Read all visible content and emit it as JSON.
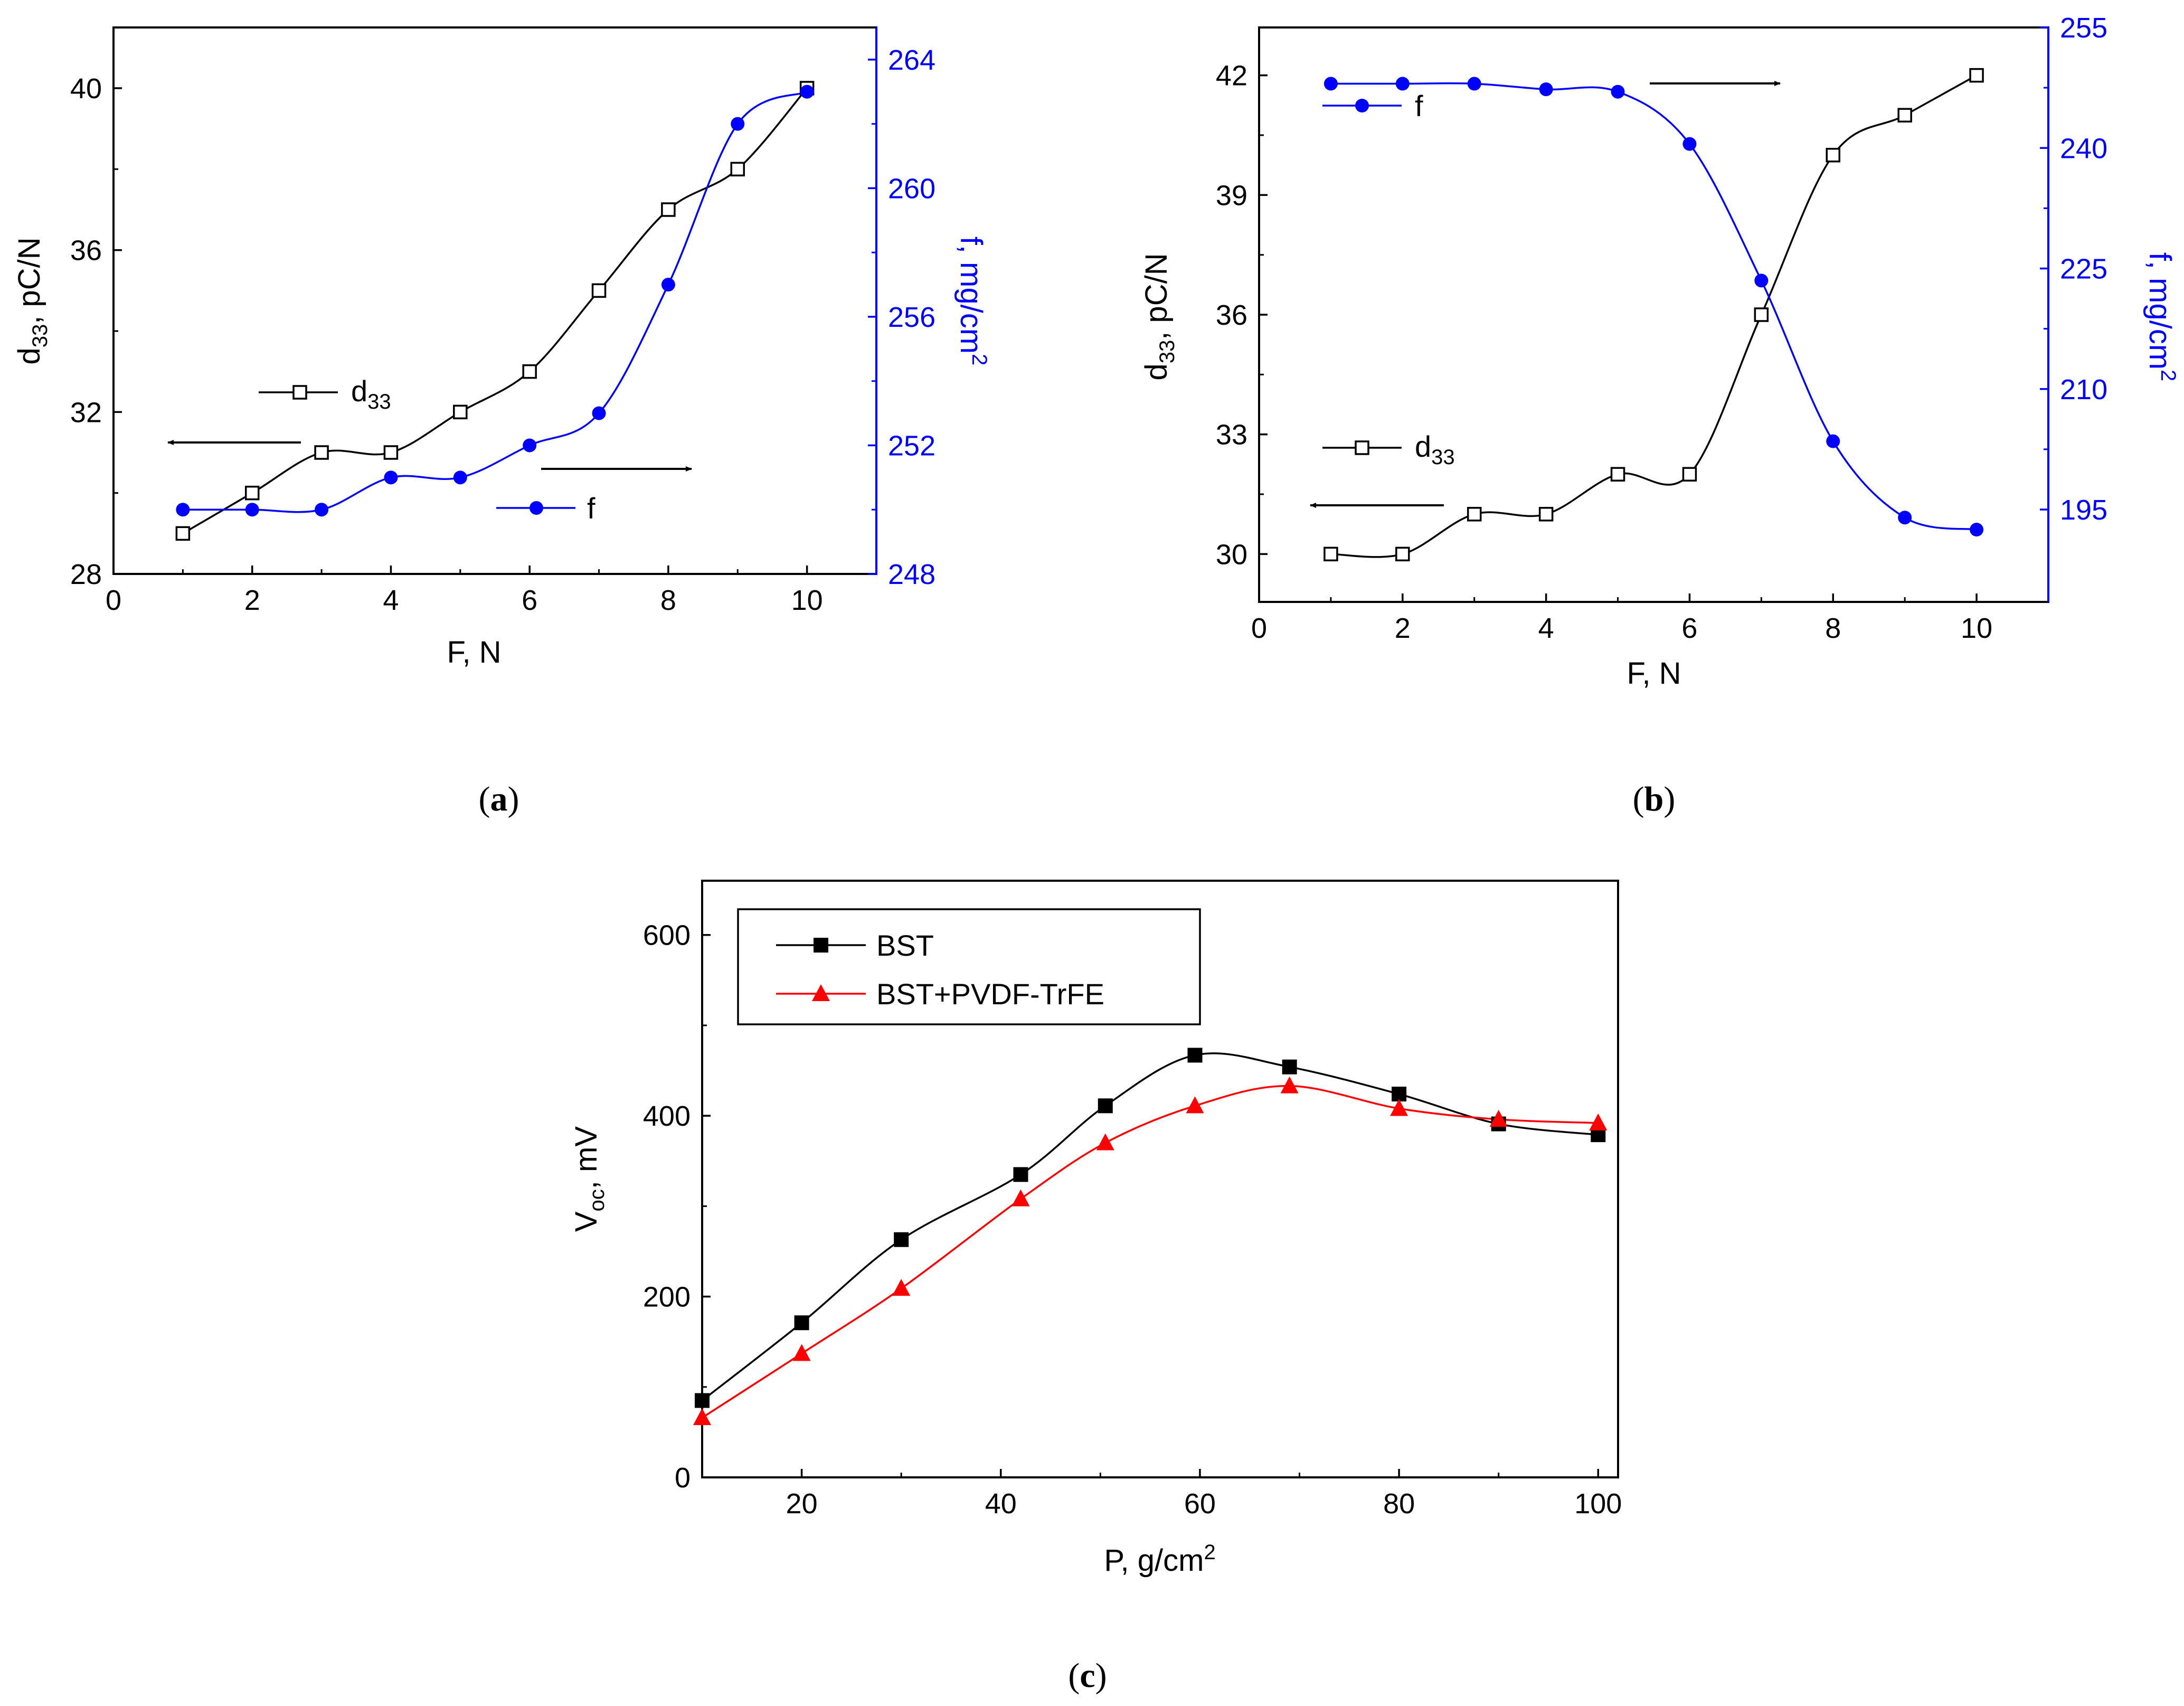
{
  "chart_data": [
    {
      "id": "a",
      "type": "line",
      "panel_label": "a",
      "xlabel": "F, N",
      "ylabel_left": "d33, pC/N",
      "ylabel_left_main": "d",
      "ylabel_left_sub": "33",
      "ylabel_left_rest": ", pC/N",
      "ylabel_right": "f, mg/cm2",
      "ylabel_right_main": "f, mg/cm",
      "ylabel_right_sup": "2",
      "xlim": [
        0,
        11
      ],
      "xticks": [
        0,
        2,
        4,
        6,
        8,
        10
      ],
      "ylim_left": [
        28,
        41.5
      ],
      "yticks_left": [
        28,
        32,
        36,
        40
      ],
      "ylim_right": [
        248,
        265
      ],
      "yticks_right": [
        248,
        252,
        256,
        260,
        264
      ],
      "right_axis_color": "#0000ff",
      "series": [
        {
          "name": "d33",
          "legend_main": "d",
          "legend_sub": "33",
          "axis": "left",
          "color": "#000000",
          "marker": "open-square",
          "x": [
            1,
            2,
            3,
            4,
            5,
            6,
            7,
            8,
            9,
            10
          ],
          "values": [
            29,
            30,
            31,
            31,
            32,
            33,
            35,
            37,
            38,
            40
          ]
        },
        {
          "name": "f",
          "legend_main": "f",
          "axis": "right",
          "color": "#0000ff",
          "marker": "filled-circle",
          "x": [
            1,
            2,
            3,
            4,
            5,
            6,
            7,
            8,
            9,
            10
          ],
          "values": [
            250,
            250,
            250,
            251,
            251,
            252,
            253,
            257,
            262,
            263
          ]
        }
      ]
    },
    {
      "id": "b",
      "type": "line",
      "panel_label": "b",
      "xlabel": "F, N",
      "ylabel_left": "d33, pC/N",
      "ylabel_left_main": "d",
      "ylabel_left_sub": "33",
      "ylabel_left_rest": ", pC/N",
      "ylabel_right": "f, mg/cm2",
      "ylabel_right_main": "f, mg/cm",
      "ylabel_right_sup": "2",
      "xlim": [
        0,
        11
      ],
      "xticks": [
        0,
        2,
        4,
        6,
        8,
        10
      ],
      "ylim_left": [
        28.8,
        43.2
      ],
      "yticks_left": [
        30,
        33,
        36,
        39,
        42
      ],
      "ylim_right": [
        183.5,
        255
      ],
      "yticks_right": [
        195,
        210,
        225,
        240,
        255
      ],
      "right_axis_color": "#0000ff",
      "series": [
        {
          "name": "d33",
          "legend_main": "d",
          "legend_sub": "33",
          "axis": "left",
          "color": "#000000",
          "marker": "open-square",
          "x": [
            1,
            2,
            3,
            4,
            5,
            6,
            7,
            8,
            9,
            10
          ],
          "values": [
            30,
            30,
            31,
            31,
            32,
            32,
            36,
            40,
            41,
            42
          ]
        },
        {
          "name": "f",
          "legend_main": "f",
          "axis": "right",
          "color": "#0000ff",
          "marker": "filled-circle",
          "x": [
            1,
            2,
            3,
            4,
            5,
            6,
            7,
            8,
            9,
            10
          ],
          "values": [
            248,
            248,
            248,
            247.3,
            247,
            240.5,
            223.5,
            203.5,
            194,
            192.5
          ]
        }
      ]
    },
    {
      "id": "c",
      "type": "line",
      "panel_label": "c",
      "xlabel": "P, g/cm2",
      "xlabel_main": "P, g/cm",
      "xlabel_sup": "2",
      "ylabel": "Voc, mV",
      "ylabel_main": "V",
      "ylabel_sub": "oc",
      "ylabel_rest": ", mV",
      "xlim": [
        10,
        102
      ],
      "xticks": [
        20,
        40,
        60,
        80,
        100
      ],
      "ylim": [
        0,
        660
      ],
      "yticks": [
        0,
        200,
        400,
        600
      ],
      "legend_position": "top-left",
      "series": [
        {
          "name": "BST",
          "color": "#000000",
          "marker": "filled-square",
          "x": [
            10,
            20,
            30,
            42,
            50.5,
            59.5,
            69,
            80,
            90,
            100
          ],
          "values": [
            85,
            171,
            263,
            335,
            411,
            467,
            454,
            424,
            391,
            379
          ]
        },
        {
          "name": "BST+PVDF-TrFE",
          "color": "#ff0000",
          "marker": "filled-triangle",
          "x": [
            10,
            20,
            30,
            42,
            50.5,
            59.5,
            69,
            80,
            90,
            100
          ],
          "values": [
            66,
            137,
            209,
            308,
            370,
            411,
            433,
            408,
            396,
            392
          ]
        }
      ]
    }
  ]
}
